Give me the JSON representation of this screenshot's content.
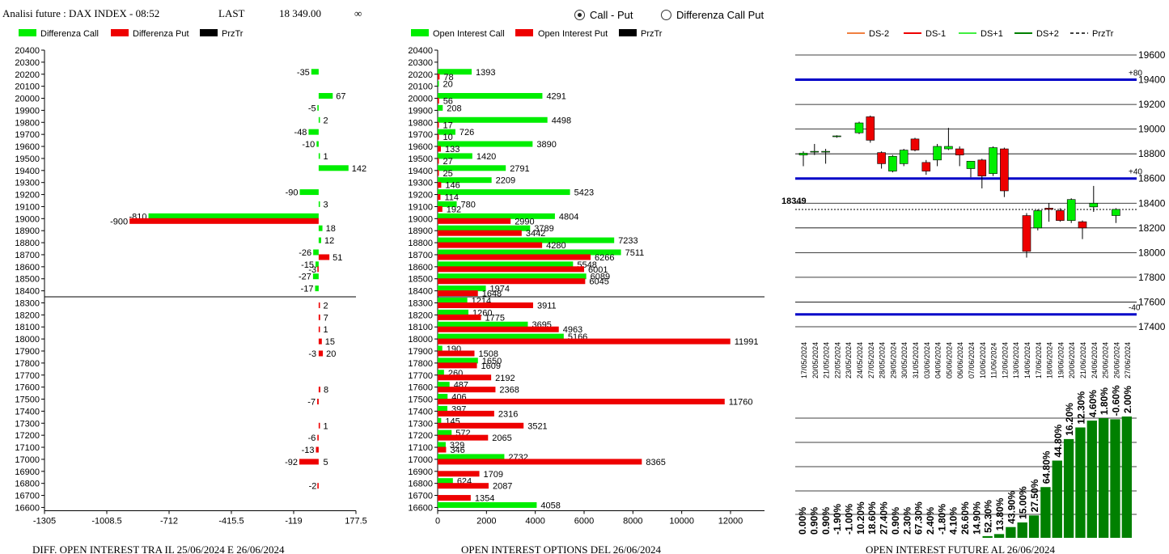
{
  "header": {
    "title": "Analisi future : DAX INDEX - 08:52",
    "last_label": "LAST",
    "last_value": "18 349.00",
    "infinity": "∞"
  },
  "radios": [
    {
      "label": "Call - Put",
      "selected": true
    },
    {
      "label": "Differenza Call Put",
      "selected": false
    }
  ],
  "colors": {
    "call": "#00ee00",
    "put": "#ee0000",
    "prztr": "#000000",
    "band": "#0000c8",
    "dark_green": "#008000"
  },
  "chart_data": [
    {
      "id": "diff",
      "type": "bar",
      "orientation": "horizontal",
      "title": "DIFF. OPEN INTEREST TRA IL 25/06/2024 E 26/06/2024",
      "legend": [
        "Differenza Call",
        "Differenza Put",
        "PrzTr"
      ],
      "strikes": [
        20400,
        20300,
        20200,
        20100,
        20000,
        19900,
        19800,
        19700,
        19600,
        19500,
        19400,
        19300,
        19200,
        19100,
        19000,
        18900,
        18800,
        18700,
        18600,
        18500,
        18400,
        18300,
        18200,
        18100,
        18000,
        17900,
        17800,
        17700,
        17600,
        17500,
        17400,
        17300,
        17200,
        17100,
        17000,
        16900,
        16800,
        16700,
        16600
      ],
      "x_ticks": [
        "-1305",
        "-1008.5",
        "-712",
        "-415.5",
        "-119",
        "177.5"
      ],
      "xlim": [
        -1305,
        177.5
      ],
      "price_line_between": [
        18400,
        18300
      ],
      "call": [
        {
          "strike": 20200,
          "value": -35
        },
        {
          "strike": 20000,
          "value": 67
        },
        {
          "strike": 19900,
          "value": -5
        },
        {
          "strike": 19800,
          "value": 2
        },
        {
          "strike": 19700,
          "value": -48
        },
        {
          "strike": 19600,
          "value": -10
        },
        {
          "strike": 19500,
          "value": 1
        },
        {
          "strike": 19400,
          "value": 142
        },
        {
          "strike": 19200,
          "value": -90
        },
        {
          "strike": 19100,
          "value": 3
        },
        {
          "strike": 19000,
          "value": -810
        },
        {
          "strike": 18900,
          "value": 18
        },
        {
          "strike": 18800,
          "value": 12
        },
        {
          "strike": 18700,
          "value": -26
        },
        {
          "strike": 18600,
          "value": -15
        },
        {
          "strike": 18500,
          "value": -27
        },
        {
          "strike": 18400,
          "value": -17
        }
      ],
      "put": [
        {
          "strike": 19000,
          "value": -900
        },
        {
          "strike": 18700,
          "value": 51
        },
        {
          "strike": 18600,
          "value": -3
        },
        {
          "strike": 18300,
          "value": 2
        },
        {
          "strike": 18200,
          "value": 7
        },
        {
          "strike": 18100,
          "value": 1
        },
        {
          "strike": 18000,
          "value": 15
        },
        {
          "strike": 17900,
          "value": 20
        },
        {
          "strike": 17900,
          "value": -3,
          "label_only": true
        },
        {
          "strike": 17600,
          "value": 8
        },
        {
          "strike": 17500,
          "value": -7
        },
        {
          "strike": 17300,
          "value": 1
        },
        {
          "strike": 17200,
          "value": -6
        },
        {
          "strike": 17100,
          "value": -13
        },
        {
          "strike": 17000,
          "value": -92
        },
        {
          "strike": 17000,
          "value": 5,
          "label_only": true
        },
        {
          "strike": 16800,
          "value": -2
        }
      ]
    },
    {
      "id": "oi",
      "type": "bar",
      "orientation": "horizontal",
      "title": "OPEN INTEREST OPTIONS DEL 26/06/2024",
      "legend": [
        "Open Interest Call",
        "Open Interest Put",
        "PrzTr"
      ],
      "strikes": [
        20400,
        20300,
        20200,
        20100,
        20000,
        19900,
        19800,
        19700,
        19600,
        19500,
        19400,
        19300,
        19200,
        19100,
        19000,
        18900,
        18800,
        18700,
        18600,
        18500,
        18400,
        18300,
        18200,
        18100,
        18000,
        17900,
        17800,
        17700,
        17600,
        17500,
        17400,
        17300,
        17200,
        17100,
        17000,
        16900,
        16800,
        16700,
        16600
      ],
      "x_ticks": [
        "0",
        "2000",
        "4000",
        "6000",
        "8000",
        "10000",
        "12000"
      ],
      "xlim": [
        0,
        13500
      ],
      "series": [
        {
          "name": "Open Interest Call",
          "values": [
            null,
            null,
            1393,
            20,
            4291,
            208,
            4498,
            726,
            3890,
            1420,
            2791,
            2209,
            5423,
            780,
            4804,
            3789,
            7233,
            7511,
            5548,
            6089,
            1974,
            1214,
            1260,
            3695,
            5166,
            190,
            1650,
            260,
            487,
            406,
            397,
            145,
            572,
            329,
            2732,
            null,
            624,
            null,
            4058
          ]
        },
        {
          "name": "Open Interest Put",
          "values": [
            null,
            null,
            78,
            null,
            56,
            null,
            17,
            10,
            133,
            27,
            25,
            146,
            114,
            192,
            2990,
            3442,
            4280,
            6266,
            6001,
            6045,
            1648,
            3911,
            1775,
            4963,
            11991,
            1508,
            1609,
            2192,
            2368,
            11760,
            2316,
            3521,
            2065,
            346,
            8365,
            1709,
            2087,
            1354,
            null
          ]
        }
      ]
    },
    {
      "id": "future",
      "type": "candlestick",
      "legend": [
        "DS-2",
        "DS-1",
        "DS+1",
        "DS+2",
        "PrzTr"
      ],
      "legend_colors": [
        "#f08040",
        "#ee0000",
        "#40ee40",
        "#008000",
        "#000000"
      ],
      "y_ticks": [
        "19600",
        "19400",
        "19200",
        "19000",
        "18800",
        "18600",
        "18400",
        "18200",
        "18000",
        "17800",
        "17600",
        "17400"
      ],
      "ylim": [
        17350,
        19650
      ],
      "last_price_label": "18349",
      "last_price": 18349,
      "bands": [
        {
          "level": 19400,
          "label": "+80"
        },
        {
          "level": 18600,
          "label": "+40"
        },
        {
          "level": 17500,
          "label": "-40"
        }
      ],
      "dates": [
        "17/05/2024",
        "20/05/2024",
        "21/05/2024",
        "22/05/2024",
        "23/05/2024",
        "24/05/2024",
        "27/05/2024",
        "28/05/2024",
        "29/05/2024",
        "30/05/2024",
        "31/05/2024",
        "03/06/2024",
        "04/06/2024",
        "05/06/2024",
        "06/06/2024",
        "07/06/2024",
        "10/06/2024",
        "11/06/2024",
        "12/06/2024",
        "13/06/2024",
        "14/06/2024",
        "17/06/2024",
        "18/06/2024",
        "19/06/2024",
        "20/06/2024",
        "21/06/2024",
        "24/06/2024",
        "25/06/2024",
        "26/06/2024",
        "27/06/2024"
      ],
      "candles": [
        {
          "o": 18790,
          "h": 18820,
          "l": 18700,
          "c": 18805
        },
        {
          "o": 18815,
          "h": 18880,
          "l": 18790,
          "c": 18820
        },
        {
          "o": 18815,
          "h": 18840,
          "l": 18720,
          "c": 18820
        },
        {
          "o": 18940,
          "h": 18950,
          "l": 18930,
          "c": 18945
        },
        null,
        {
          "o": 18970,
          "h": 19060,
          "l": 18960,
          "c": 19050
        },
        {
          "o": 19100,
          "h": 19110,
          "l": 18890,
          "c": 18910
        },
        {
          "o": 18810,
          "h": 18820,
          "l": 18680,
          "c": 18720
        },
        {
          "o": 18660,
          "h": 18790,
          "l": 18650,
          "c": 18780
        },
        {
          "o": 18720,
          "h": 18840,
          "l": 18700,
          "c": 18830
        },
        {
          "o": 18920,
          "h": 18930,
          "l": 18820,
          "c": 18830
        },
        {
          "o": 18730,
          "h": 18750,
          "l": 18630,
          "c": 18660
        },
        {
          "o": 18750,
          "h": 18880,
          "l": 18700,
          "c": 18860
        },
        {
          "o": 18840,
          "h": 19010,
          "l": 18830,
          "c": 18860
        },
        {
          "o": 18840,
          "h": 18860,
          "l": 18700,
          "c": 18790
        },
        {
          "o": 18680,
          "h": 18740,
          "l": 18610,
          "c": 18740
        },
        {
          "o": 18750,
          "h": 18760,
          "l": 18520,
          "c": 18620
        },
        {
          "o": 18640,
          "h": 18860,
          "l": 18620,
          "c": 18850
        },
        {
          "o": 18840,
          "h": 18850,
          "l": 18450,
          "c": 18500
        },
        null,
        {
          "o": 18300,
          "h": 18320,
          "l": 17960,
          "c": 18010
        },
        {
          "o": 18200,
          "h": 18350,
          "l": 18180,
          "c": 18340
        },
        {
          "o": 18360,
          "h": 18400,
          "l": 18250,
          "c": 18350
        },
        {
          "o": 18340,
          "h": 18360,
          "l": 18250,
          "c": 18260
        },
        {
          "o": 18260,
          "h": 18440,
          "l": 18240,
          "c": 18430
        },
        {
          "o": 18250,
          "h": 18260,
          "l": 18110,
          "c": 18200
        },
        {
          "o": 18370,
          "h": 18540,
          "l": 18330,
          "c": 18400
        },
        null,
        {
          "o": 18300,
          "h": 18360,
          "l": 18240,
          "c": 18350
        },
        null
      ]
    },
    {
      "id": "future_pct",
      "type": "bar",
      "title": "OPEN INTEREST FUTURE AL 26/06/2024",
      "labels": [
        "0.00%",
        "0.90%",
        "0.90%",
        "-1.90%",
        "-1.00%",
        "10.20%",
        "18.60%",
        "27.40%",
        "0.90%",
        "2.30%",
        "67.30%",
        "2.40%",
        "-1.80%",
        "4.10%",
        "26.60%",
        "14.90%",
        "52.30%",
        "13.80%",
        "43.90%",
        "15.00%",
        "27.50%",
        "64.80%",
        "44.80%",
        "16.20%",
        "12.30%",
        "4.60%",
        "1.80%",
        "-0.60%",
        "2.00%"
      ],
      "values": [
        0.0,
        0.0,
        0.0,
        0.0,
        0.0,
        0.0,
        0.0,
        0.0,
        0.0,
        0.0,
        0.0,
        0.0,
        0.0,
        0.0,
        0.0,
        0.0,
        1.0,
        2.2,
        6.3,
        9.0,
        13.1,
        29.7,
        45.2,
        57.8,
        64.6,
        68.6,
        70.0,
        69.4,
        71.0
      ]
    }
  ]
}
